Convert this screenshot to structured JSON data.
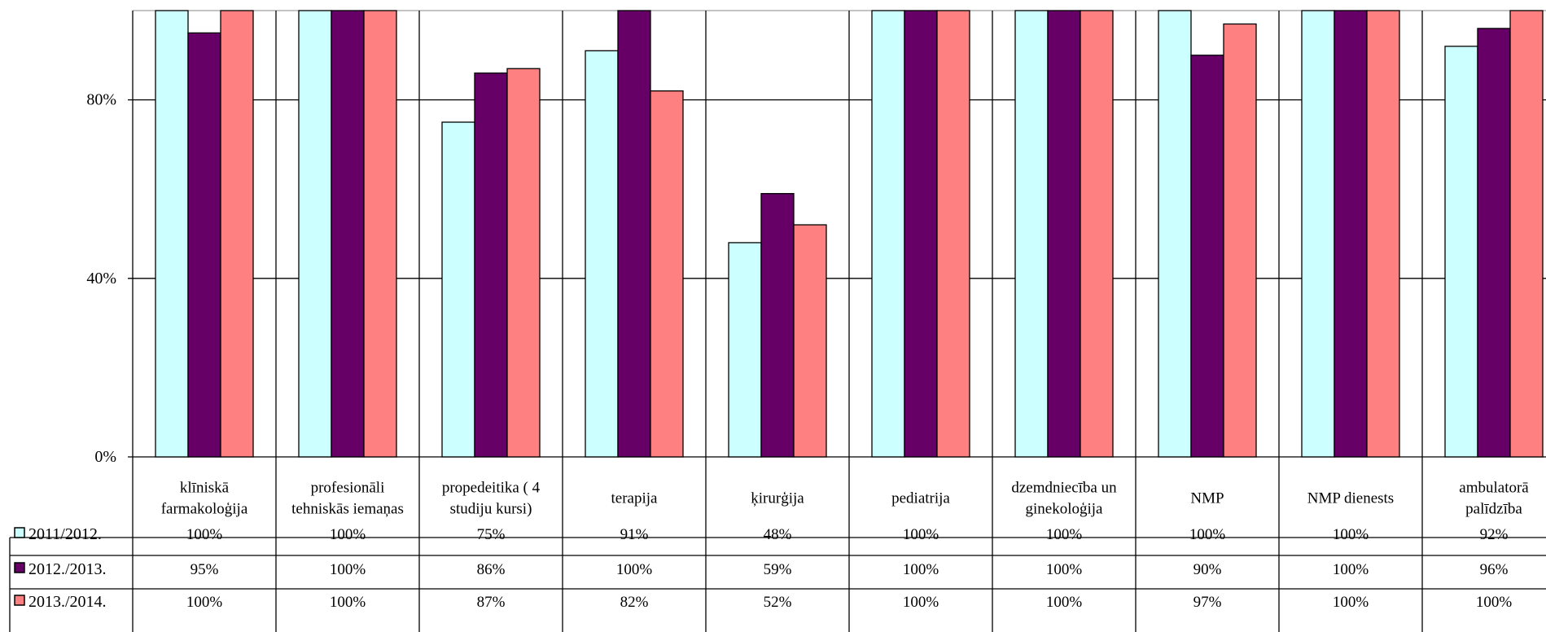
{
  "chart_data": {
    "type": "bar",
    "title": "",
    "xlabel": "",
    "ylabel": "",
    "ylim": [
      0,
      100
    ],
    "y_ticks": [
      0,
      40,
      80
    ],
    "y_tick_labels": [
      "0%",
      "40%",
      "80%"
    ],
    "grid": true,
    "legend": "data-table-left",
    "categories": [
      [
        "klīniskā",
        "farmakoloģija"
      ],
      [
        "profesionāli",
        "tehniskās iemaņas"
      ],
      [
        "propedeitika ( 4",
        "studiju kursi)"
      ],
      [
        "terapija"
      ],
      [
        "ķirurģija"
      ],
      [
        "pediatrija"
      ],
      [
        "dzemdniecība un",
        "ginekoloģija"
      ],
      [
        "NMP"
      ],
      [
        "NMP dienests"
      ],
      [
        "ambulatorā",
        "palīdzība"
      ]
    ],
    "series": [
      {
        "name": "2011/2012.",
        "color": "#ccffff",
        "values": [
          100,
          100,
          75,
          91,
          48,
          100,
          100,
          100,
          100,
          92
        ],
        "labels": [
          "100%",
          "100%",
          "75%",
          "91%",
          "48%",
          "100%",
          "100%",
          "100%",
          "100%",
          "92%"
        ]
      },
      {
        "name": "2012./2013.",
        "color": "#660066",
        "values": [
          95,
          100,
          86,
          100,
          59,
          100,
          100,
          90,
          100,
          96
        ],
        "labels": [
          "95%",
          "100%",
          "86%",
          "100%",
          "59%",
          "100%",
          "100%",
          "90%",
          "100%",
          "96%"
        ]
      },
      {
        "name": "2013./2014.",
        "color": "#ff8080",
        "values": [
          100,
          100,
          87,
          82,
          52,
          100,
          100,
          97,
          100,
          100
        ],
        "labels": [
          "100%",
          "100%",
          "87%",
          "82%",
          "52%",
          "100%",
          "100%",
          "97%",
          "100%",
          "100%"
        ]
      }
    ]
  }
}
